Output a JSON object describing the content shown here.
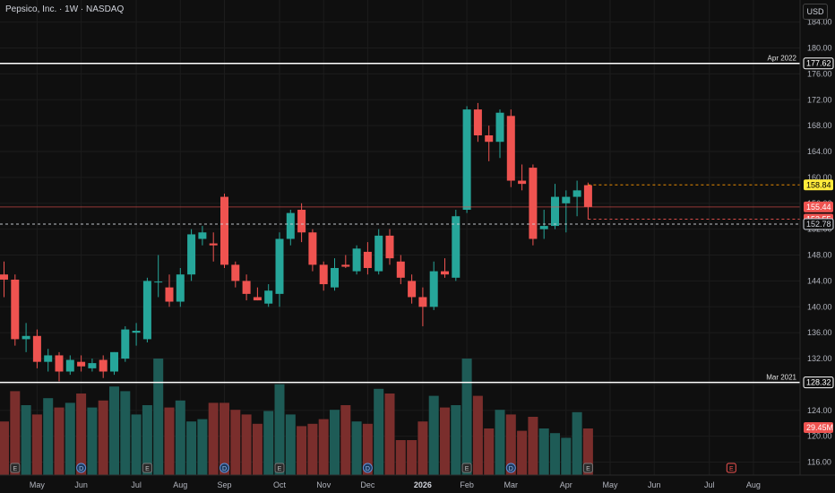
{
  "header": {
    "title": "Pepsico, Inc. · 1W · NASDAQ",
    "currency": "USD"
  },
  "colors": {
    "background": "#0f0f0f",
    "up": "#26a69a",
    "down": "#ef5350",
    "volume_up": "#1e5b56",
    "volume_down": "#7a2e2c",
    "grid": "#1c1c1c",
    "text": "#b2b5be",
    "highlight_yellow": "#ffeb3b"
  },
  "chart_data": {
    "type": "candlestick",
    "interval": "1W",
    "ylim": [
      114,
      187
    ],
    "y_ticks": [
      116,
      120,
      124,
      128,
      132,
      136,
      140,
      144,
      148,
      152,
      156,
      160,
      164,
      168,
      172,
      176,
      180,
      184
    ],
    "x_labels": [
      {
        "label": "May",
        "index": 3
      },
      {
        "label": "Jun",
        "index": 7
      },
      {
        "label": "Jul",
        "index": 12
      },
      {
        "label": "Aug",
        "index": 16
      },
      {
        "label": "Sep",
        "index": 20
      },
      {
        "label": "Oct",
        "index": 25
      },
      {
        "label": "Nov",
        "index": 29
      },
      {
        "label": "Dec",
        "index": 33
      },
      {
        "label": "2026",
        "index": 38
      },
      {
        "label": "Feb",
        "index": 42
      },
      {
        "label": "Mar",
        "index": 46
      },
      {
        "label": "Apr",
        "index": 51
      },
      {
        "label": "May",
        "index": 55
      },
      {
        "label": "Jun",
        "index": 59
      },
      {
        "label": "Jul",
        "index": 64
      },
      {
        "label": "Aug",
        "index": 68
      }
    ],
    "candles": [
      {
        "o": 145.0,
        "h": 147.0,
        "l": 141.5,
        "c": 144.2
      },
      {
        "o": 144.2,
        "h": 145.0,
        "l": 134.0,
        "c": 135.0
      },
      {
        "o": 135.0,
        "h": 137.5,
        "l": 133.0,
        "c": 135.5
      },
      {
        "o": 135.5,
        "h": 136.5,
        "l": 130.5,
        "c": 131.5
      },
      {
        "o": 131.5,
        "h": 133.5,
        "l": 130.0,
        "c": 132.5
      },
      {
        "o": 132.5,
        "h": 133.0,
        "l": 128.5,
        "c": 130.0
      },
      {
        "o": 130.0,
        "h": 132.5,
        "l": 129.5,
        "c": 131.8
      },
      {
        "o": 131.5,
        "h": 132.5,
        "l": 130.0,
        "c": 130.8
      },
      {
        "o": 130.5,
        "h": 132.0,
        "l": 130.0,
        "c": 131.3
      },
      {
        "o": 131.8,
        "h": 132.5,
        "l": 129.0,
        "c": 130.0
      },
      {
        "o": 130.0,
        "h": 133.0,
        "l": 129.5,
        "c": 133.0
      },
      {
        "o": 132.0,
        "h": 137.0,
        "l": 131.5,
        "c": 136.5
      },
      {
        "o": 136.0,
        "h": 137.5,
        "l": 134.0,
        "c": 136.3
      },
      {
        "o": 135.0,
        "h": 144.5,
        "l": 134.5,
        "c": 144.0
      },
      {
        "o": 143.8,
        "h": 148.0,
        "l": 141.5,
        "c": 143.9
      },
      {
        "o": 143.0,
        "h": 145.0,
        "l": 140.0,
        "c": 140.8
      },
      {
        "o": 140.8,
        "h": 146.0,
        "l": 140.0,
        "c": 145.0
      },
      {
        "o": 145.0,
        "h": 152.0,
        "l": 144.0,
        "c": 151.2
      },
      {
        "o": 150.5,
        "h": 152.5,
        "l": 149.5,
        "c": 151.5
      },
      {
        "o": 149.8,
        "h": 151.5,
        "l": 147.0,
        "c": 149.5
      },
      {
        "o": 157.0,
        "h": 157.5,
        "l": 146.0,
        "c": 146.5
      },
      {
        "o": 146.5,
        "h": 147.0,
        "l": 143.0,
        "c": 144.0
      },
      {
        "o": 144.0,
        "h": 145.0,
        "l": 141.0,
        "c": 142.0
      },
      {
        "o": 141.5,
        "h": 143.0,
        "l": 141.0,
        "c": 141.0
      },
      {
        "o": 140.5,
        "h": 143.5,
        "l": 140.0,
        "c": 142.5
      },
      {
        "o": 142.0,
        "h": 151.5,
        "l": 140.0,
        "c": 150.5
      },
      {
        "o": 150.5,
        "h": 155.0,
        "l": 149.5,
        "c": 154.5
      },
      {
        "o": 155.0,
        "h": 156.0,
        "l": 150.0,
        "c": 151.5
      },
      {
        "o": 151.5,
        "h": 152.0,
        "l": 145.5,
        "c": 146.5
      },
      {
        "o": 146.5,
        "h": 147.0,
        "l": 142.5,
        "c": 143.5
      },
      {
        "o": 143.0,
        "h": 147.5,
        "l": 142.5,
        "c": 146.0
      },
      {
        "o": 146.5,
        "h": 148.0,
        "l": 146.0,
        "c": 146.2
      },
      {
        "o": 145.5,
        "h": 149.5,
        "l": 145.0,
        "c": 149.0
      },
      {
        "o": 148.5,
        "h": 150.0,
        "l": 145.0,
        "c": 146.0
      },
      {
        "o": 145.5,
        "h": 152.0,
        "l": 145.0,
        "c": 151.0
      },
      {
        "o": 151.0,
        "h": 152.0,
        "l": 146.5,
        "c": 147.5
      },
      {
        "o": 147.0,
        "h": 148.0,
        "l": 143.5,
        "c": 144.5
      },
      {
        "o": 144.0,
        "h": 145.0,
        "l": 140.5,
        "c": 141.5
      },
      {
        "o": 141.5,
        "h": 143.0,
        "l": 137.0,
        "c": 140.0
      },
      {
        "o": 140.0,
        "h": 147.0,
        "l": 139.5,
        "c": 145.5
      },
      {
        "o": 145.5,
        "h": 147.5,
        "l": 144.5,
        "c": 145.0
      },
      {
        "o": 144.5,
        "h": 155.0,
        "l": 144.0,
        "c": 154.0
      },
      {
        "o": 155.0,
        "h": 171.0,
        "l": 154.5,
        "c": 170.5
      },
      {
        "o": 170.5,
        "h": 171.5,
        "l": 165.5,
        "c": 166.5
      },
      {
        "o": 166.5,
        "h": 168.0,
        "l": 162.5,
        "c": 165.5
      },
      {
        "o": 165.5,
        "h": 170.5,
        "l": 163.0,
        "c": 170.0
      },
      {
        "o": 169.5,
        "h": 170.5,
        "l": 158.5,
        "c": 159.5
      },
      {
        "o": 159.5,
        "h": 162.0,
        "l": 158.0,
        "c": 159.0
      },
      {
        "o": 161.5,
        "h": 162.0,
        "l": 149.5,
        "c": 150.5
      },
      {
        "o": 152.0,
        "h": 155.0,
        "l": 150.5,
        "c": 152.5
      },
      {
        "o": 152.5,
        "h": 159.0,
        "l": 152.0,
        "c": 157.0
      },
      {
        "o": 156.0,
        "h": 158.0,
        "l": 151.5,
        "c": 157.0
      },
      {
        "o": 157.0,
        "h": 159.5,
        "l": 154.0,
        "c": 158.0
      },
      {
        "o": 158.8,
        "h": 159.2,
        "l": 153.5,
        "c": 155.44
      }
    ],
    "volume": [
      0.46,
      0.72,
      0.6,
      0.52,
      0.66,
      0.58,
      0.62,
      0.7,
      0.58,
      0.64,
      0.76,
      0.72,
      0.52,
      0.6,
      1.0,
      0.58,
      0.64,
      0.46,
      0.48,
      0.62,
      0.62,
      0.56,
      0.52,
      0.44,
      0.55,
      0.78,
      0.52,
      0.42,
      0.44,
      0.48,
      0.56,
      0.6,
      0.46,
      0.44,
      0.74,
      0.7,
      0.3,
      0.3,
      0.46,
      0.68,
      0.58,
      0.6,
      1.0,
      0.68,
      0.4,
      0.56,
      0.52,
      0.38,
      0.5,
      0.4,
      0.36,
      0.32,
      0.54,
      0.4
    ],
    "volume_label": "29.45M",
    "horizontal_lines": [
      {
        "name": "Apr 2022",
        "value": 177.62,
        "label": "177.62"
      },
      {
        "name": "Mar 2021",
        "value": 128.32,
        "label": "128.32"
      }
    ],
    "price_levels": [
      {
        "name": "high-level",
        "value": 158.84,
        "label": "158.84",
        "style": "dashed-orange"
      },
      {
        "name": "last-price",
        "value": 155.44,
        "label": "155.44",
        "style": "solid-red"
      },
      {
        "name": "previous-close",
        "value": 153.55,
        "label": "153.55",
        "style": "dashed-red"
      },
      {
        "name": "low-level",
        "value": 152.78,
        "label": "152.78",
        "style": "dashed-white"
      }
    ],
    "event_markers": [
      {
        "type": "E",
        "index": 1
      },
      {
        "type": "D",
        "index": 7
      },
      {
        "type": "E",
        "index": 13
      },
      {
        "type": "D",
        "index": 20
      },
      {
        "type": "E",
        "index": 25
      },
      {
        "type": "D",
        "index": 33
      },
      {
        "type": "E",
        "index": 42
      },
      {
        "type": "D",
        "index": 46
      },
      {
        "type": "E",
        "index": 53
      },
      {
        "type": "E",
        "index": 66,
        "future": true
      }
    ]
  }
}
